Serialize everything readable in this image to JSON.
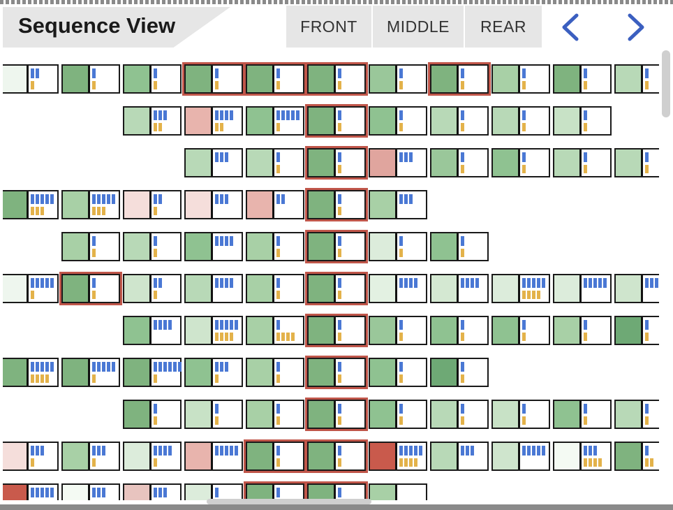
{
  "title": "Sequence View",
  "tabs": [
    "FRONT",
    "MIDDLE",
    "REAR"
  ],
  "nav": {
    "prev": "chevron-left",
    "next": "chevron-right"
  },
  "colors": {
    "accent": "#3b5fc0",
    "highlight": "#c0564a",
    "blue_bar": "#4a78d4",
    "yellow_bar": "#e3b24a",
    "green_dark": "#6ea975",
    "green_mid": "#8fc291",
    "green_light": "#b8d9b7",
    "green_pale": "#dcecdb",
    "red_dark": "#d06050",
    "red_light": "#e8b4ad",
    "red_pale": "#f5dedb"
  },
  "rows": [
    {
      "start": 0,
      "cells": [
        {
          "c": "#eef6ee",
          "b": 2,
          "y": 1
        },
        {
          "c": "#7fb37f",
          "b": 1,
          "y": 1
        },
        {
          "c": "#8fc291",
          "b": 1,
          "y": 1
        },
        {
          "c": "#7fb37f",
          "b": 1,
          "y": 1,
          "h": true
        },
        {
          "c": "#7fb37f",
          "b": 1,
          "y": 1,
          "h": true
        },
        {
          "c": "#7fb37f",
          "b": 1,
          "y": 1,
          "h": true
        },
        {
          "c": "#9ac79a",
          "b": 1,
          "y": 1
        },
        {
          "c": "#7fb37f",
          "b": 1,
          "y": 1,
          "h": true
        },
        {
          "c": "#a8d0a6",
          "b": 1,
          "y": 1
        },
        {
          "c": "#7fb37f",
          "b": 1,
          "y": 1
        },
        {
          "c": "#b8d9b7",
          "b": 1,
          "y": 1
        }
      ]
    },
    {
      "start": 2,
      "cells": [
        {
          "c": "#b8d9b7",
          "b": 3,
          "y": 2
        },
        {
          "c": "#e8b4ad",
          "b": 4,
          "y": 2
        },
        {
          "c": "#8fc291",
          "b": 5,
          "y": 1
        },
        {
          "c": "#7fb37f",
          "b": 1,
          "y": 1,
          "h": true
        },
        {
          "c": "#8fc291",
          "b": 1,
          "y": 1
        },
        {
          "c": "#b8d9b7",
          "b": 1,
          "y": 1
        },
        {
          "c": "#b8d9b7",
          "b": 1,
          "y": 1
        },
        {
          "c": "#c8e2c6",
          "b": 1,
          "y": 1
        }
      ]
    },
    {
      "start": 3,
      "cells": [
        {
          "c": "#b8d9b7",
          "b": 3,
          "y": 0
        },
        {
          "c": "#b8d9b7",
          "b": 1,
          "y": 1
        },
        {
          "c": "#7fb37f",
          "b": 1,
          "y": 1,
          "h": true
        },
        {
          "c": "#e0a59e",
          "b": 3,
          "y": 0
        },
        {
          "c": "#9ac79a",
          "b": 1,
          "y": 1
        },
        {
          "c": "#8fc291",
          "b": 1,
          "y": 1
        },
        {
          "c": "#b8d9b7",
          "b": 1,
          "y": 1
        },
        {
          "c": "#b8d9b7",
          "b": 1,
          "y": 1
        }
      ]
    },
    {
      "start": 0,
      "cells": [
        {
          "c": "#7fb37f",
          "b": 5,
          "y": 3
        },
        {
          "c": "#a8d0a6",
          "b": 5,
          "y": 3
        },
        {
          "c": "#f5dedb",
          "b": 2,
          "y": 1
        },
        {
          "c": "#f5dedb",
          "b": 3,
          "y": 0
        },
        {
          "c": "#e8b4ad",
          "b": 2,
          "y": 0
        },
        {
          "c": "#7fb37f",
          "b": 1,
          "y": 1,
          "h": true
        },
        {
          "c": "#a8d0a6",
          "b": 3,
          "y": 0
        }
      ]
    },
    {
      "start": 1,
      "cells": [
        {
          "c": "#a8d0a6",
          "b": 1,
          "y": 1
        },
        {
          "c": "#b8d9b7",
          "b": 1,
          "y": 1
        },
        {
          "c": "#8fc291",
          "b": 4,
          "y": 0
        },
        {
          "c": "#a8d0a6",
          "b": 1,
          "y": 1
        },
        {
          "c": "#7fb37f",
          "b": 1,
          "y": 1,
          "h": true
        },
        {
          "c": "#dcecdb",
          "b": 1,
          "y": 1
        },
        {
          "c": "#8fc291",
          "b": 1,
          "y": 1
        }
      ]
    },
    {
      "start": 0,
      "cells": [
        {
          "c": "#eef6ee",
          "b": 5,
          "y": 1
        },
        {
          "c": "#7fb37f",
          "b": 1,
          "y": 1,
          "h": true
        },
        {
          "c": "#cfe5cd",
          "b": 2,
          "y": 1
        },
        {
          "c": "#b8d9b7",
          "b": 4,
          "y": 0
        },
        {
          "c": "#a8d0a6",
          "b": 1,
          "y": 1
        },
        {
          "c": "#7fb37f",
          "b": 1,
          "y": 1,
          "h": true
        },
        {
          "c": "#e3f1e2",
          "b": 4,
          "y": 0
        },
        {
          "c": "#d4e8d2",
          "b": 4,
          "y": 0
        },
        {
          "c": "#dcecdb",
          "b": 5,
          "y": 4
        },
        {
          "c": "#dcecdb",
          "b": 5,
          "y": 0
        },
        {
          "c": "#cfe5cd",
          "b": 4,
          "y": 0
        }
      ]
    },
    {
      "start": 2,
      "cells": [
        {
          "c": "#8fc291",
          "b": 4,
          "y": 0
        },
        {
          "c": "#cfe5cd",
          "b": 5,
          "y": 4
        },
        {
          "c": "#a8d0a6",
          "b": 1,
          "y": 4
        },
        {
          "c": "#7fb37f",
          "b": 1,
          "y": 1,
          "h": true
        },
        {
          "c": "#9ac79a",
          "b": 1,
          "y": 1
        },
        {
          "c": "#8fc291",
          "b": 1,
          "y": 1
        },
        {
          "c": "#8fc291",
          "b": 1,
          "y": 1
        },
        {
          "c": "#a8d0a6",
          "b": 1,
          "y": 1
        },
        {
          "c": "#6ea975",
          "b": 1,
          "y": 1
        }
      ]
    },
    {
      "start": 0,
      "cells": [
        {
          "c": "#7fb37f",
          "b": 5,
          "y": 4
        },
        {
          "c": "#7fb37f",
          "b": 5,
          "y": 1
        },
        {
          "c": "#7fb37f",
          "b": 6,
          "y": 1
        },
        {
          "c": "#8fc291",
          "b": 3,
          "y": 1
        },
        {
          "c": "#a8d0a6",
          "b": 1,
          "y": 1
        },
        {
          "c": "#7fb37f",
          "b": 1,
          "y": 1,
          "h": true
        },
        {
          "c": "#8fc291",
          "b": 1,
          "y": 1
        },
        {
          "c": "#6ea975",
          "b": 1,
          "y": 1
        }
      ]
    },
    {
      "start": 2,
      "cells": [
        {
          "c": "#7fb37f",
          "b": 1,
          "y": 1
        },
        {
          "c": "#c8e2c6",
          "b": 1,
          "y": 1
        },
        {
          "c": "#a8d0a6",
          "b": 1,
          "y": 1
        },
        {
          "c": "#7fb37f",
          "b": 1,
          "y": 1,
          "h": true
        },
        {
          "c": "#8fc291",
          "b": 1,
          "y": 1
        },
        {
          "c": "#b8d9b7",
          "b": 1,
          "y": 1
        },
        {
          "c": "#c8e2c6",
          "b": 1,
          "y": 1
        },
        {
          "c": "#8fc291",
          "b": 1,
          "y": 1
        },
        {
          "c": "#b8d9b7",
          "b": 1,
          "y": 1
        }
      ]
    },
    {
      "start": 0,
      "cells": [
        {
          "c": "#f5dedb",
          "b": 3,
          "y": 1
        },
        {
          "c": "#a8d0a6",
          "b": 3,
          "y": 1
        },
        {
          "c": "#dcecdb",
          "b": 4,
          "y": 1
        },
        {
          "c": "#e8b4ad",
          "b": 5,
          "y": 0
        },
        {
          "c": "#7fb37f",
          "b": 1,
          "y": 1,
          "h": true
        },
        {
          "c": "#7fb37f",
          "b": 1,
          "y": 1,
          "h": true
        },
        {
          "c": "#c95a4c",
          "b": 5,
          "y": 4
        },
        {
          "c": "#b8d9b7",
          "b": 3,
          "y": 0
        },
        {
          "c": "#cfe5cd",
          "b": 5,
          "y": 0
        },
        {
          "c": "#f4faf3",
          "b": 3,
          "y": 4
        },
        {
          "c": "#7fb37f",
          "b": 1,
          "y": 2
        }
      ]
    },
    {
      "start": 0,
      "cells": [
        {
          "c": "#c95a4c",
          "b": 5,
          "y": 0
        },
        {
          "c": "#f4faf3",
          "b": 3,
          "y": 0
        },
        {
          "c": "#e8c4bf",
          "b": 3,
          "y": 0
        },
        {
          "c": "#dcecdb",
          "b": 1,
          "y": 0
        },
        {
          "c": "#7fb37f",
          "b": 1,
          "y": 0,
          "h": true
        },
        {
          "c": "#7fb37f",
          "b": 1,
          "y": 0,
          "h": true
        },
        {
          "c": "#a8d0a6",
          "b": 0,
          "y": 0
        }
      ]
    }
  ]
}
